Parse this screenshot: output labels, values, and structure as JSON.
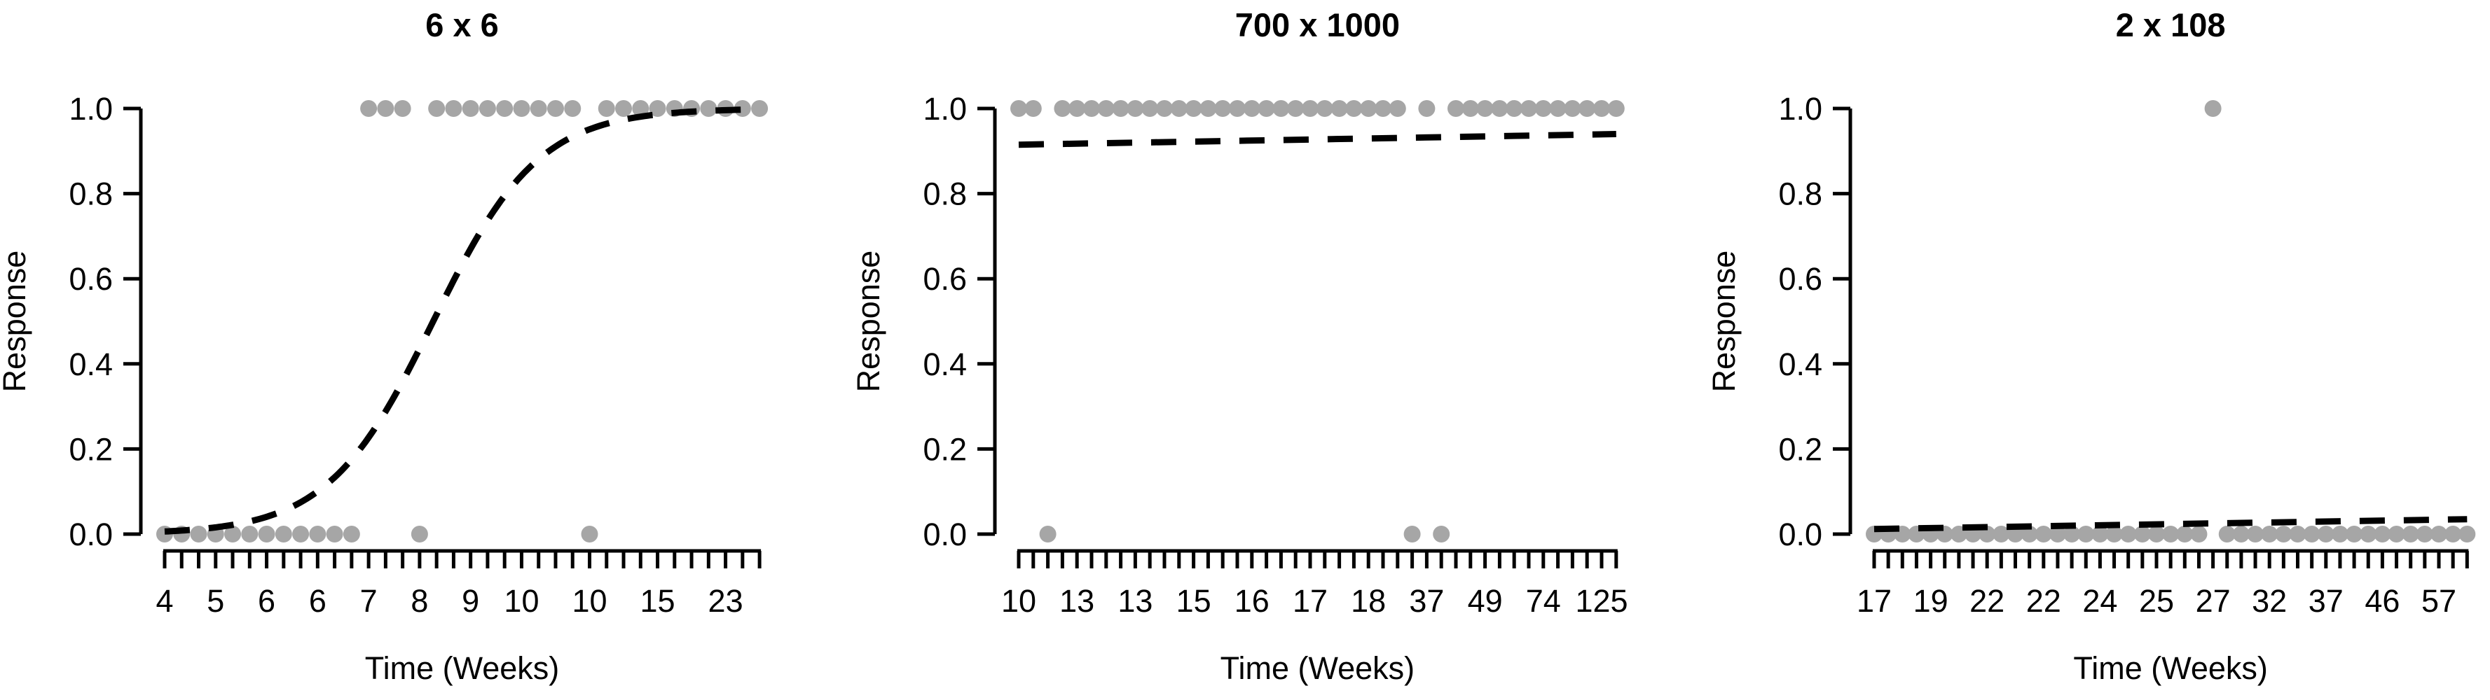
{
  "figure": {
    "background": "#ffffff",
    "description": "Three R-style scatter panels of binary Response vs observation rank with dashed logistic fit curves"
  },
  "chart_data": [
    {
      "type": "scatter",
      "title": "6 x 6",
      "xlabel": "Time (Weeks)",
      "ylabel": "Response",
      "ylim": [
        0,
        1
      ],
      "ytick_labels": [
        "0.0",
        "0.2",
        "0.4",
        "0.6",
        "0.8",
        "1.0"
      ],
      "n": 36,
      "x_label_positions": [
        1,
        4,
        7,
        10,
        13,
        16,
        19,
        22,
        26,
        30,
        34
      ],
      "x_labels": [
        "4",
        "5",
        "6",
        "6",
        "7",
        "8",
        "9",
        "10",
        "10",
        "15",
        "23"
      ],
      "response": [
        0,
        0,
        0,
        0,
        0,
        0,
        0,
        0,
        0,
        0,
        0,
        0,
        1,
        1,
        1,
        0,
        1,
        1,
        1,
        1,
        1,
        1,
        1,
        1,
        1,
        0,
        1,
        1,
        1,
        1,
        1,
        1,
        1,
        1,
        1,
        1
      ],
      "fit_curve": {
        "shape": "logistic",
        "midpoint_index": 16.8,
        "scale": 3.1
      },
      "point_color": "#a6a6a6",
      "curve_color": "#000000",
      "legend": "none",
      "grid": "off"
    },
    {
      "type": "scatter",
      "title": "700 x 1000",
      "xlabel": "Time (Weeks)",
      "ylabel": "Response",
      "ylim": [
        0,
        1
      ],
      "ytick_labels": [
        "0.0",
        "0.2",
        "0.4",
        "0.6",
        "0.8",
        "1.0"
      ],
      "n": 42,
      "x_label_positions": [
        1,
        5,
        9,
        13,
        17,
        21,
        25,
        29,
        33,
        37,
        41
      ],
      "x_labels": [
        "10",
        "13",
        "13",
        "15",
        "16",
        "17",
        "18",
        "37",
        "49",
        "74",
        "125"
      ],
      "response": [
        1,
        1,
        0,
        1,
        1,
        1,
        1,
        1,
        1,
        1,
        1,
        1,
        1,
        1,
        1,
        1,
        1,
        1,
        1,
        1,
        1,
        1,
        1,
        1,
        1,
        1,
        1,
        0,
        1,
        0,
        1,
        1,
        1,
        1,
        1,
        1,
        1,
        1,
        1,
        1,
        1,
        1
      ],
      "fit_curve": {
        "shape": "linear",
        "y_start": 0.915,
        "y_end": 0.94
      },
      "point_color": "#a6a6a6",
      "curve_color": "#000000",
      "legend": "none",
      "grid": "off"
    },
    {
      "type": "scatter",
      "title": "2 x 108",
      "xlabel": "Time (Weeks)",
      "ylabel": "Response",
      "ylim": [
        0,
        1
      ],
      "ytick_labels": [
        "0.0",
        "0.2",
        "0.4",
        "0.6",
        "0.8",
        "1.0"
      ],
      "n": 43,
      "x_label_positions": [
        1,
        5,
        9,
        13,
        17,
        21,
        25,
        29,
        33,
        37,
        41
      ],
      "x_labels": [
        "17",
        "19",
        "22",
        "22",
        "24",
        "25",
        "27",
        "32",
        "37",
        "46",
        "57"
      ],
      "response": [
        0,
        0,
        0,
        0,
        0,
        0,
        0,
        0,
        0,
        0,
        0,
        0,
        0,
        0,
        0,
        0,
        0,
        0,
        0,
        0,
        0,
        0,
        0,
        0,
        1,
        0,
        0,
        0,
        0,
        0,
        0,
        0,
        0,
        0,
        0,
        0,
        0,
        0,
        0,
        0,
        0,
        0,
        0
      ],
      "fit_curve": {
        "shape": "linear",
        "y_start": 0.012,
        "y_end": 0.035
      },
      "point_color": "#a6a6a6",
      "curve_color": "#000000",
      "legend": "none",
      "grid": "off"
    }
  ]
}
